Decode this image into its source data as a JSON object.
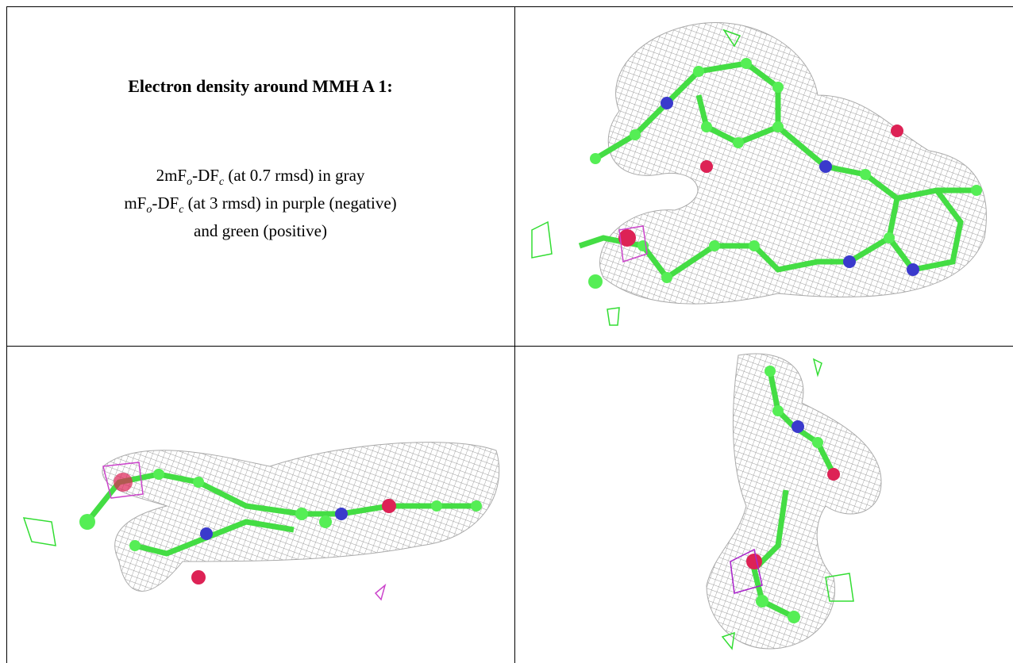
{
  "caption": {
    "title": "Electron density around MMH A 1:",
    "lines": [
      [
        "2mF",
        "o",
        "-DF",
        "c",
        " (at 0.7 rmsd) in gray"
      ],
      [
        "mF",
        "o",
        "-DF",
        "c",
        " (at 3 rmsd) in purple (negative)"
      ],
      [
        "and green (positive)"
      ]
    ]
  }
}
